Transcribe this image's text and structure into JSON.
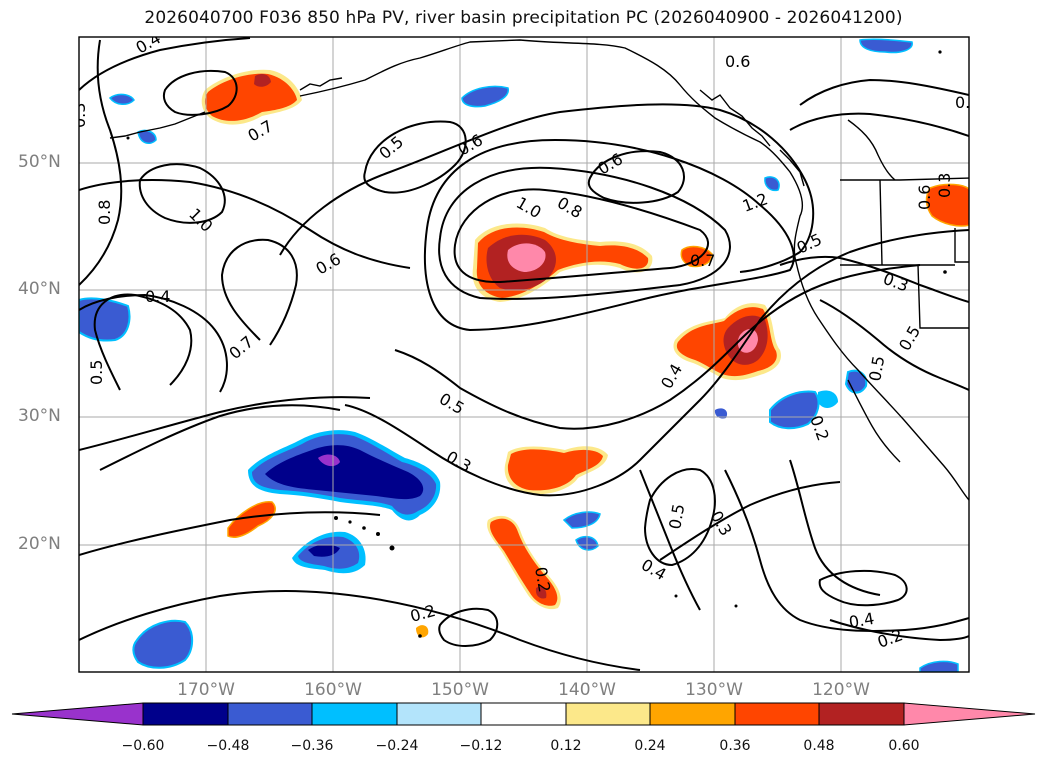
{
  "title": "2026040700 F036 850 hPa PV, river basin precipitation PC (2026040900 - 2026041200)",
  "axes": {
    "lat_labels": [
      "50°N",
      "40°N",
      "30°N",
      "20°N"
    ],
    "lon_labels": [
      "170°W",
      "160°W",
      "150°W",
      "140°W",
      "130°W",
      "120°W"
    ]
  },
  "contour_labels": [
    "0.6",
    "0.5",
    "0.4",
    "0.7",
    "1.0",
    "0.8",
    "0.6",
    "0.5",
    "0.6",
    "0.6",
    "0.8",
    "1.0",
    "1.2",
    "0.5",
    "0.3",
    "0.7",
    "0.6",
    "0.4",
    "0.7",
    "0.5",
    "0.5",
    "0.3",
    "0.4",
    "0.3",
    "0.5",
    "0.2",
    "0.5",
    "0.3",
    "0.4",
    "0.2",
    "0.2",
    "0.4",
    "0.2",
    "0.3",
    "0.3"
  ],
  "colorbar": {
    "ticks": [
      "−0.60",
      "−0.48",
      "−0.36",
      "−0.24",
      "−0.12",
      "0.12",
      "0.24",
      "0.36",
      "0.48",
      "0.60"
    ],
    "colors": [
      "#9932cc",
      "#00008b",
      "#3a5bd2",
      "#00bfff",
      "#b3e4fb",
      "#ffffff",
      "#fce88a",
      "#ffa500",
      "#ff4500",
      "#b22222",
      "#ff88aa",
      "#ff88aa"
    ]
  },
  "chart_data": {
    "type": "map",
    "title": "2026040700 F036 850 hPa PV, river basin precipitation PC (2026040900 - 2026041200)",
    "contour_field": "850 hPa PV",
    "fill_field": "river basin precipitation PC",
    "lon_range": [
      180,
      110
    ],
    "lat_range": [
      10,
      60
    ],
    "contour_levels": [
      0.2,
      0.3,
      0.4,
      0.5,
      0.6,
      0.7,
      0.8,
      1.0,
      1.2
    ],
    "fill_levels": [
      -0.6,
      -0.48,
      -0.36,
      -0.24,
      -0.12,
      0.12,
      0.24,
      0.36,
      0.48,
      0.6
    ]
  }
}
